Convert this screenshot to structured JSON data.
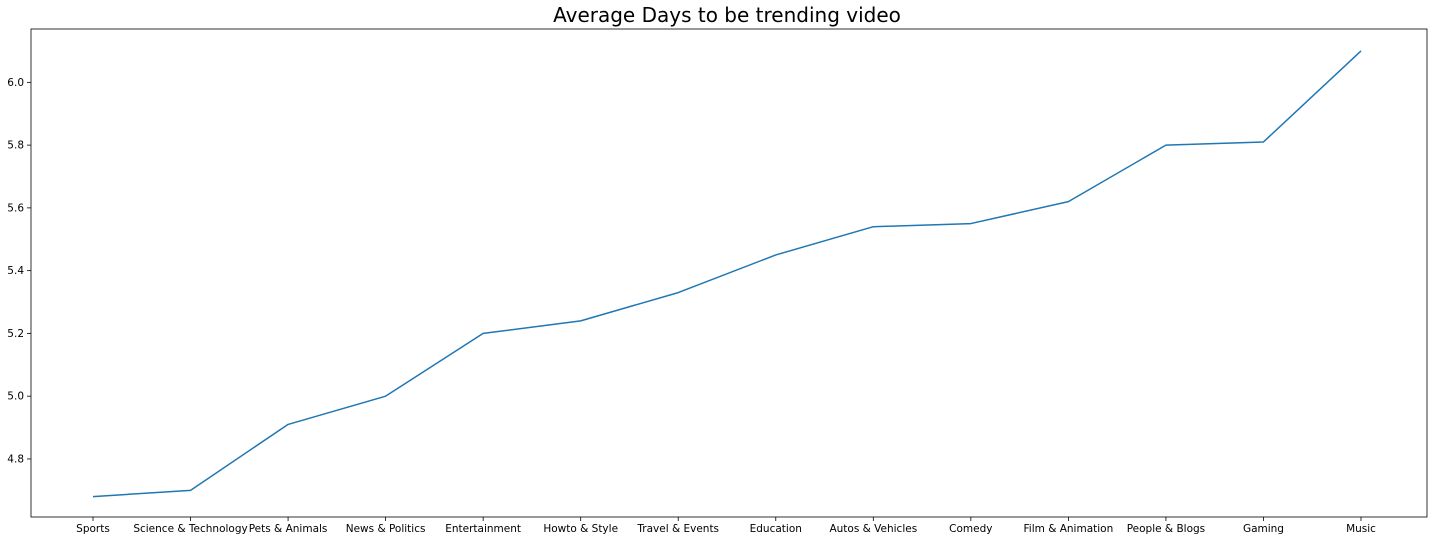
{
  "chart_data": {
    "type": "line",
    "title": "Average Days to be trending video",
    "xlabel": "",
    "ylabel": "",
    "categories": [
      "Sports",
      "Science & Technology",
      "Pets & Animals",
      "News & Politics",
      "Entertainment",
      "Howto & Style",
      "Travel & Events",
      "Education",
      "Autos & Vehicles",
      "Comedy",
      "Film & Animation",
      "People & Blogs",
      "Gaming",
      "Music"
    ],
    "values": [
      4.68,
      4.7,
      4.91,
      5.0,
      5.2,
      5.24,
      5.33,
      5.45,
      5.54,
      5.55,
      5.62,
      5.8,
      5.81,
      6.1
    ],
    "ylim": [
      4.615,
      6.17
    ],
    "yticks": [
      4.8,
      5.0,
      5.2,
      5.4,
      5.6,
      5.8,
      6.0
    ],
    "ytick_labels": [
      "4.8",
      "5.0",
      "5.2",
      "5.4",
      "5.6",
      "5.8",
      "6.0"
    ],
    "line_color": "#1f77b4",
    "grid": false,
    "legend": "none"
  }
}
